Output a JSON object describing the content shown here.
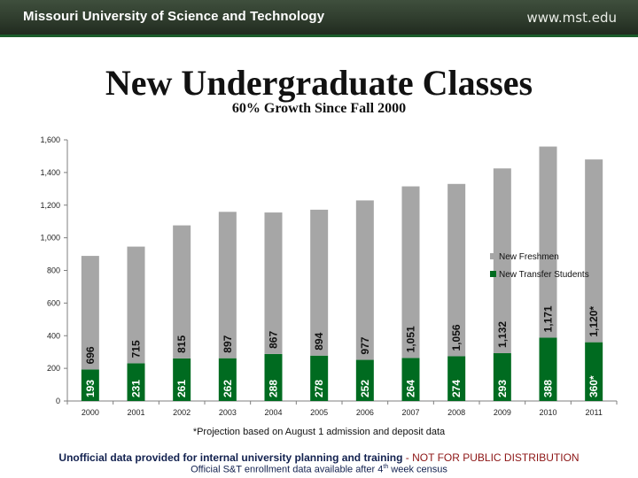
{
  "header": {
    "university": "Missouri University of Science and Technology",
    "website": "www.mst.edu"
  },
  "page_title": "New Undergraduate Classes",
  "subtitle": "60% Growth Since Fall 2000",
  "footnote": "*Projection based on August 1 admission and deposit data",
  "disclaimer": {
    "line1_bold": "Unofficial data provided for internal university planning and training",
    "line1_sep": " - ",
    "line1_red": "NOT FOR PUBLIC DISTRIBUTION",
    "line2_pre": "Official S&T enrollment data available  after 4",
    "line2_sup": "th",
    "line2_post": " week census"
  },
  "colors": {
    "freshmen": "#a6a6a6",
    "transfer": "#006b20",
    "header_bg": "#34422f"
  },
  "chart_data": {
    "type": "bar",
    "stacked": true,
    "categories": [
      "2000",
      "2001",
      "2002",
      "2003",
      "2004",
      "2005",
      "2006",
      "2007",
      "2008",
      "2009",
      "2010",
      "2011"
    ],
    "series": [
      {
        "name": "New Transfer Students",
        "values": [
          193,
          231,
          261,
          262,
          288,
          278,
          252,
          264,
          274,
          293,
          388,
          360
        ],
        "labels": [
          "193",
          "231",
          "261",
          "262",
          "288",
          "278",
          "252",
          "264",
          "274",
          "293",
          "388",
          "360*"
        ]
      },
      {
        "name": "New Freshmen",
        "values": [
          696,
          715,
          815,
          897,
          867,
          894,
          977,
          1051,
          1056,
          1132,
          1171,
          1120
        ],
        "labels": [
          "696",
          "715",
          "815",
          "897",
          "867",
          "894",
          "977",
          "1,051",
          "1,056",
          "1,132",
          "1,171",
          "1,120*"
        ]
      }
    ],
    "ylim": [
      0,
      1600
    ],
    "yticks": [
      0,
      200,
      400,
      600,
      800,
      1000,
      1200,
      1400,
      1600
    ],
    "ytick_labels": [
      "0",
      "200",
      "400",
      "600",
      "800",
      "1,000",
      "1,200",
      "1,400",
      "1,600"
    ],
    "grid": false,
    "legend": [
      "New Freshmen",
      "New Transfer Students"
    ],
    "legend_position": "right"
  }
}
